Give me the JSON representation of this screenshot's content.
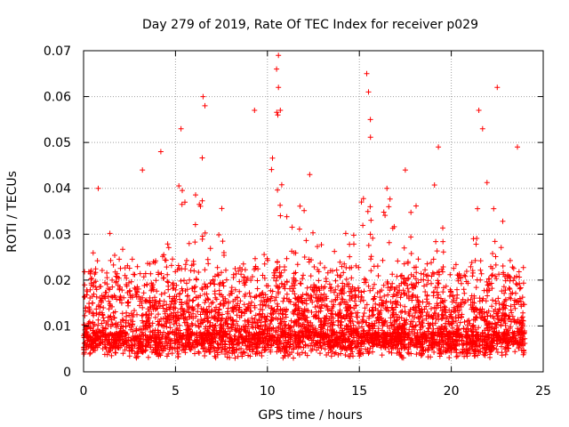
{
  "chart_data": {
    "type": "scatter",
    "title": "Day 279 of 2019, Rate Of TEC Index for receiver p029",
    "xlabel": "GPS time / hours",
    "ylabel": "ROTI / TECUs",
    "xlim": [
      0,
      25
    ],
    "ylim": [
      0,
      0.07
    ],
    "x_ticks": [
      0,
      5,
      10,
      15,
      20,
      25
    ],
    "x_tick_labels": [
      "0",
      "5",
      "10",
      "15",
      "20",
      "25"
    ],
    "y_ticks": [
      0,
      0.01,
      0.02,
      0.03,
      0.04,
      0.05,
      0.06,
      0.07
    ],
    "y_tick_labels": [
      "0",
      "0.01",
      "0.02",
      "0.03",
      "0.04",
      "0.05",
      "0.06",
      "0.07"
    ],
    "grid": true,
    "marker": "plus",
    "marker_color": "#ff0000",
    "series": [
      {
        "name": "ROTI",
        "x_range": [
          0,
          24
        ],
        "typical_y": 0.011,
        "min_y": 0.003,
        "max_y": 0.069,
        "envelope": [
          {
            "x": 0.0,
            "lo": 0.005,
            "hi": 0.024
          },
          {
            "x": 1.0,
            "lo": 0.005,
            "hi": 0.034
          },
          {
            "x": 2.0,
            "lo": 0.005,
            "hi": 0.03
          },
          {
            "x": 3.0,
            "lo": 0.004,
            "hi": 0.036
          },
          {
            "x": 4.0,
            "lo": 0.004,
            "hi": 0.038
          },
          {
            "x": 5.0,
            "lo": 0.005,
            "hi": 0.04
          },
          {
            "x": 6.0,
            "lo": 0.005,
            "hi": 0.05
          },
          {
            "x": 6.5,
            "lo": 0.005,
            "hi": 0.06
          },
          {
            "x": 7.0,
            "lo": 0.005,
            "hi": 0.044
          },
          {
            "x": 8.0,
            "lo": 0.004,
            "hi": 0.032
          },
          {
            "x": 9.0,
            "lo": 0.004,
            "hi": 0.03
          },
          {
            "x": 10.0,
            "lo": 0.005,
            "hi": 0.04
          },
          {
            "x": 10.5,
            "lo": 0.005,
            "hi": 0.069
          },
          {
            "x": 11.0,
            "lo": 0.005,
            "hi": 0.036
          },
          {
            "x": 12.0,
            "lo": 0.006,
            "hi": 0.042
          },
          {
            "x": 13.0,
            "lo": 0.005,
            "hi": 0.03
          },
          {
            "x": 14.0,
            "lo": 0.005,
            "hi": 0.034
          },
          {
            "x": 15.0,
            "lo": 0.005,
            "hi": 0.04
          },
          {
            "x": 15.5,
            "lo": 0.005,
            "hi": 0.065
          },
          {
            "x": 16.0,
            "lo": 0.005,
            "hi": 0.042
          },
          {
            "x": 17.0,
            "lo": 0.005,
            "hi": 0.044
          },
          {
            "x": 18.0,
            "lo": 0.005,
            "hi": 0.04
          },
          {
            "x": 19.0,
            "lo": 0.005,
            "hi": 0.049
          },
          {
            "x": 20.0,
            "lo": 0.005,
            "hi": 0.03
          },
          {
            "x": 21.0,
            "lo": 0.004,
            "hi": 0.034
          },
          {
            "x": 21.7,
            "lo": 0.004,
            "hi": 0.057
          },
          {
            "x": 22.5,
            "lo": 0.005,
            "hi": 0.062
          },
          {
            "x": 23.0,
            "lo": 0.005,
            "hi": 0.04
          },
          {
            "x": 24.0,
            "lo": 0.006,
            "hi": 0.03
          }
        ],
        "notable_points": [
          {
            "x": 0.8,
            "y": 0.04
          },
          {
            "x": 3.2,
            "y": 0.044
          },
          {
            "x": 4.2,
            "y": 0.048
          },
          {
            "x": 5.3,
            "y": 0.053
          },
          {
            "x": 6.5,
            "y": 0.06
          },
          {
            "x": 6.6,
            "y": 0.058
          },
          {
            "x": 9.3,
            "y": 0.057
          },
          {
            "x": 10.6,
            "y": 0.069
          },
          {
            "x": 10.5,
            "y": 0.066
          },
          {
            "x": 10.6,
            "y": 0.062
          },
          {
            "x": 10.7,
            "y": 0.057
          },
          {
            "x": 12.3,
            "y": 0.043
          },
          {
            "x": 15.4,
            "y": 0.065
          },
          {
            "x": 15.5,
            "y": 0.061
          },
          {
            "x": 15.6,
            "y": 0.055
          },
          {
            "x": 16.5,
            "y": 0.04
          },
          {
            "x": 17.5,
            "y": 0.044
          },
          {
            "x": 19.3,
            "y": 0.049
          },
          {
            "x": 21.5,
            "y": 0.057
          },
          {
            "x": 21.7,
            "y": 0.053
          },
          {
            "x": 22.5,
            "y": 0.062
          },
          {
            "x": 23.6,
            "y": 0.049
          }
        ]
      }
    ]
  }
}
